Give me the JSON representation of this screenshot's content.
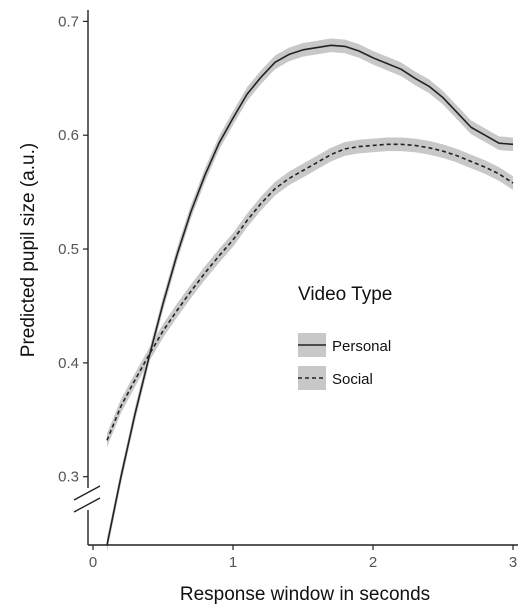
{
  "chart_data": {
    "type": "line",
    "title": "",
    "xlabel": "Response window in seconds",
    "ylabel": "Predicted pupil size  (a.u.)",
    "xlim": [
      0,
      3
    ],
    "ylim": [
      0.24,
      0.71
    ],
    "x_ticks": [
      0,
      1,
      2,
      3
    ],
    "x_tick_labels": [
      "0",
      "1",
      "2",
      "3"
    ],
    "y_ticks": [
      0.3,
      0.4,
      0.5,
      0.6,
      0.7
    ],
    "y_tick_labels": [
      "0.3",
      "0.4",
      "0.5",
      "0.6",
      "0.7"
    ],
    "y_axis_break": true,
    "grid": false,
    "ci_band_color": "#c8c8c8",
    "legend": {
      "title": "Video Type",
      "placement": "center-right"
    },
    "series": [
      {
        "name": "Personal",
        "line_style": "solid",
        "color": "#222222",
        "ci_halfwidth": 0.006,
        "x": [
          0.1,
          0.2,
          0.3,
          0.4,
          0.5,
          0.6,
          0.7,
          0.8,
          0.9,
          1.0,
          1.1,
          1.2,
          1.3,
          1.4,
          1.5,
          1.6,
          1.7,
          1.8,
          1.9,
          2.0,
          2.1,
          2.2,
          2.3,
          2.4,
          2.5,
          2.6,
          2.7,
          2.8,
          2.9,
          3.0
        ],
        "values": [
          0.24,
          0.3,
          0.355,
          0.405,
          0.452,
          0.495,
          0.533,
          0.565,
          0.593,
          0.615,
          0.636,
          0.651,
          0.664,
          0.671,
          0.675,
          0.677,
          0.679,
          0.678,
          0.674,
          0.668,
          0.663,
          0.658,
          0.65,
          0.643,
          0.633,
          0.62,
          0.607,
          0.6,
          0.593,
          0.592
        ]
      },
      {
        "name": "Social",
        "line_style": "dashed",
        "color": "#222222",
        "ci_halfwidth": 0.006,
        "x": [
          0.1,
          0.2,
          0.3,
          0.4,
          0.5,
          0.6,
          0.7,
          0.8,
          0.9,
          1.0,
          1.1,
          1.2,
          1.3,
          1.4,
          1.5,
          1.6,
          1.7,
          1.8,
          1.9,
          2.0,
          2.1,
          2.2,
          2.3,
          2.4,
          2.5,
          2.6,
          2.7,
          2.8,
          2.9,
          3.0
        ],
        "values": [
          0.332,
          0.362,
          0.385,
          0.407,
          0.428,
          0.446,
          0.463,
          0.479,
          0.494,
          0.508,
          0.525,
          0.54,
          0.553,
          0.562,
          0.569,
          0.576,
          0.583,
          0.588,
          0.59,
          0.591,
          0.592,
          0.592,
          0.591,
          0.589,
          0.586,
          0.582,
          0.577,
          0.572,
          0.566,
          0.558
        ]
      }
    ]
  }
}
